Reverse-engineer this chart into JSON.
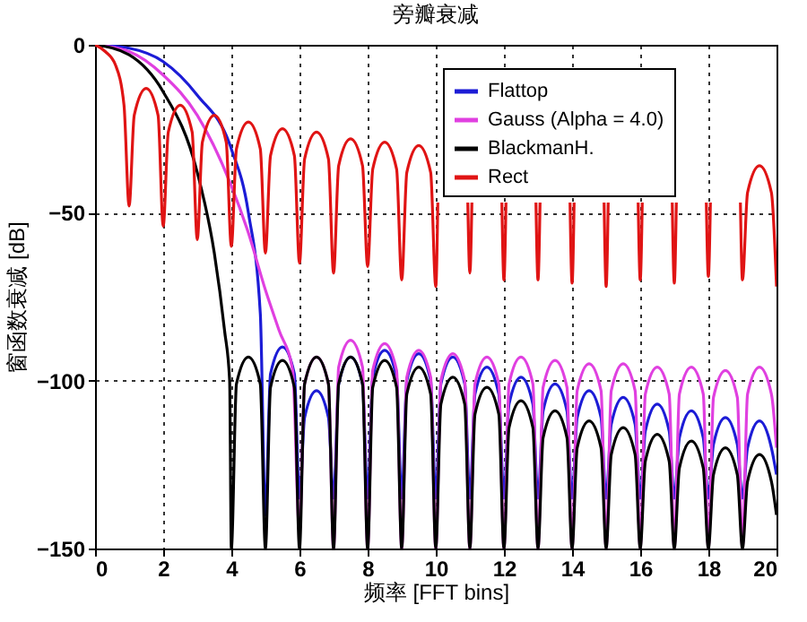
{
  "chart_data": {
    "type": "line",
    "title": "旁瓣衰减",
    "xlabel": "频率 [FFT bins]",
    "ylabel": "窗函数衰减 [dB]",
    "xlim": [
      0,
      20
    ],
    "xticks": [
      0,
      2,
      4,
      6,
      8,
      10,
      12,
      14,
      16,
      18,
      20
    ],
    "ylim": [
      -150,
      0
    ],
    "yticks": [
      -150,
      -100,
      -50,
      0
    ],
    "grid": true,
    "legend": "top right",
    "series": [
      {
        "name": "Flattop",
        "color": "#1c1cd6",
        "x": [
          0,
          1,
          2,
          3,
          4,
          4.5,
          4.85,
          5,
          5.15,
          5.5,
          5.85,
          6,
          6.15,
          6.5,
          6.85,
          7,
          7.15,
          7.5,
          7.85,
          8,
          8.15,
          8.5,
          8.85,
          9,
          9.15,
          9.5,
          9.85,
          10,
          10.15,
          10.5,
          10.85,
          11,
          11.15,
          11.5,
          11.85,
          12,
          12.15,
          12.5,
          12.85,
          13,
          13.15,
          13.5,
          13.85,
          14,
          14.15,
          14.5,
          14.85,
          15,
          15.15,
          15.5,
          15.85,
          16,
          16.15,
          16.5,
          16.85,
          17,
          17.15,
          17.5,
          17.85,
          18,
          18.15,
          18.5,
          18.85,
          19,
          19.15,
          19.5,
          19.85,
          20
        ],
        "values": [
          0,
          -1,
          -5,
          -15,
          -31,
          -50,
          -80,
          -140,
          -98,
          -90,
          -98,
          -135,
          -111,
          -103,
          -111,
          -135,
          -101,
          -93,
          -101,
          -135,
          -99,
          -91,
          -99,
          -135,
          -100,
          -92,
          -100,
          -135,
          -101,
          -93,
          -101,
          -135,
          -104,
          -96,
          -104,
          -135,
          -107,
          -99,
          -107,
          -135,
          -109,
          -101,
          -109,
          -135,
          -111,
          -103,
          -111,
          -135,
          -113,
          -105,
          -113,
          -135,
          -115,
          -107,
          -115,
          -135,
          -117,
          -109,
          -117,
          -135,
          -119,
          -111,
          -119,
          -135,
          -120,
          -112,
          -120,
          -128
        ]
      },
      {
        "name": "Gauss (Alpha = 4.0)",
        "color": "#e040e0",
        "x": [
          0,
          1,
          2,
          3,
          4,
          4.5,
          5,
          5.4,
          5.8,
          6,
          6.15,
          6.5,
          6.85,
          7,
          7.15,
          7.5,
          7.85,
          8,
          8.15,
          8.5,
          8.85,
          9,
          9.15,
          9.5,
          9.85,
          10,
          10.15,
          10.5,
          10.85,
          11,
          11.15,
          11.5,
          11.85,
          12,
          12.15,
          12.5,
          12.85,
          13,
          13.15,
          13.5,
          13.85,
          14,
          14.15,
          14.5,
          14.85,
          15,
          15.15,
          15.5,
          15.85,
          16,
          16.15,
          16.5,
          16.85,
          17,
          17.15,
          17.5,
          17.85,
          18,
          18.15,
          18.5,
          18.85,
          19,
          19.15,
          19.5,
          19.85,
          20
        ],
        "values": [
          0,
          -2,
          -9,
          -21,
          -42,
          -56,
          -73,
          -85,
          -97,
          -145,
          -101,
          -93,
          -101,
          -150,
          -96,
          -88,
          -96,
          -150,
          -97,
          -89,
          -97,
          -150,
          -99,
          -91,
          -99,
          -150,
          -100,
          -92,
          -100,
          -150,
          -101,
          -93,
          -101,
          -150,
          -101,
          -93,
          -101,
          -150,
          -102,
          -94,
          -102,
          -150,
          -103,
          -95,
          -103,
          -150,
          -103,
          -95,
          -103,
          -150,
          -104,
          -96,
          -104,
          -150,
          -104,
          -96,
          -104,
          -150,
          -105,
          -97,
          -105,
          -150,
          -104,
          -96,
          -104,
          -120
        ]
      },
      {
        "name": "BlackmanH.",
        "color": "#000000",
        "x": [
          0,
          1,
          2,
          3,
          3.5,
          3.8,
          3.95,
          4,
          4.15,
          4.5,
          4.85,
          5,
          5.15,
          5.5,
          5.85,
          6,
          6.15,
          6.5,
          6.85,
          7,
          7.15,
          7.5,
          7.85,
          8,
          8.15,
          8.5,
          8.85,
          9,
          9.15,
          9.5,
          9.85,
          10,
          10.15,
          10.5,
          10.85,
          11,
          11.15,
          11.5,
          11.85,
          12,
          12.15,
          12.5,
          12.85,
          13,
          13.15,
          13.5,
          13.85,
          14,
          14.15,
          14.5,
          14.85,
          15,
          15.15,
          15.5,
          15.85,
          16,
          16.15,
          16.5,
          16.85,
          17,
          17.15,
          17.5,
          17.85,
          18,
          18.15,
          18.5,
          18.85,
          19,
          19.15,
          19.5,
          19.85,
          20
        ],
        "values": [
          0,
          -3,
          -14,
          -38,
          -62,
          -85,
          -100,
          -150,
          -101,
          -93,
          -101,
          -150,
          -102,
          -94,
          -102,
          -150,
          -101,
          -93,
          -101,
          -150,
          -101,
          -93,
          -101,
          -150,
          -102,
          -94,
          -102,
          -150,
          -104,
          -96,
          -104,
          -150,
          -107,
          -99,
          -107,
          -150,
          -110,
          -102,
          -110,
          -150,
          -114,
          -106,
          -114,
          -150,
          -117,
          -109,
          -117,
          -150,
          -120,
          -112,
          -120,
          -150,
          -122,
          -114,
          -122,
          -150,
          -124,
          -116,
          -124,
          -150,
          -126,
          -118,
          -126,
          -150,
          -128,
          -120,
          -128,
          -150,
          -130,
          -122,
          -130,
          -140
        ]
      },
      {
        "name": "Rect",
        "color": "#e01414",
        "x": [
          0,
          0.3,
          0.6,
          0.85,
          1,
          1.15,
          1.5,
          1.85,
          2,
          2.15,
          2.5,
          2.85,
          3,
          3.15,
          3.5,
          3.85,
          4,
          4.15,
          4.5,
          4.85,
          5,
          5.15,
          5.5,
          5.85,
          6,
          6.15,
          6.5,
          6.85,
          7,
          7.15,
          7.5,
          7.85,
          8,
          8.15,
          8.5,
          8.85,
          9,
          9.15,
          9.5,
          9.85,
          10,
          10.06,
          10.5,
          10.94,
          11,
          11.06,
          11.5,
          11.94,
          12,
          12.06,
          12.5,
          12.94,
          13,
          13.06,
          13.5,
          13.94,
          14,
          14.06,
          14.5,
          14.94,
          15,
          15.06,
          15.5,
          15.94,
          16,
          16.06,
          16.5,
          16.94,
          17,
          17.06,
          17.5,
          17.94,
          18,
          18.06,
          18.5,
          18.94,
          19,
          19.15,
          19.5,
          19.85,
          20
        ],
        "values": [
          0,
          -2,
          -6,
          -18,
          -48,
          -21,
          -13,
          -21,
          -54,
          -26,
          -18,
          -26,
          -58,
          -29,
          -21,
          -29,
          -60,
          -31,
          -23,
          -31,
          -62,
          -33,
          -25,
          -33,
          -65,
          -34,
          -26,
          -34,
          -68,
          -36,
          -28,
          -36,
          -66,
          -37,
          -29,
          -37,
          -70,
          -38,
          -30,
          -38,
          -72,
          -47,
          null,
          -47,
          -68,
          -47,
          null,
          -47,
          -70,
          -47,
          null,
          -47,
          -70,
          -47,
          null,
          -47,
          -71,
          -47,
          null,
          -47,
          -72,
          -47,
          null,
          -47,
          -70,
          -47,
          null,
          -47,
          -71,
          -47,
          null,
          -47,
          -69,
          -47,
          null,
          -47,
          -70,
          -44,
          -36,
          -44,
          -72
        ]
      }
    ]
  }
}
